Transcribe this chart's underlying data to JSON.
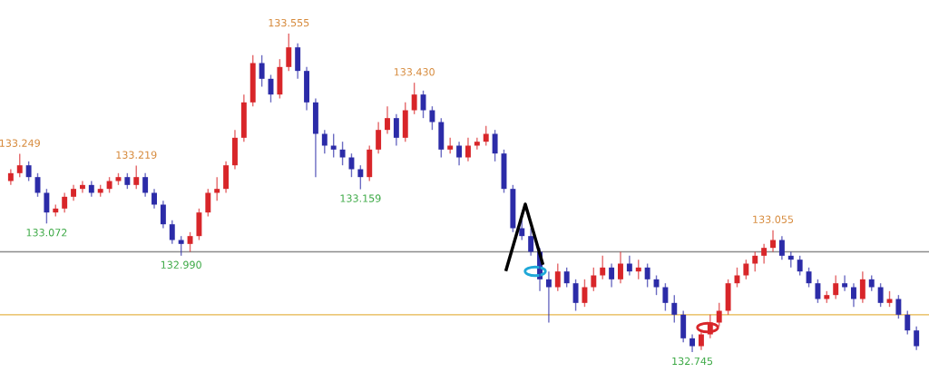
{
  "chart_data": {
    "type": "candlestick",
    "categories": [
      null,
      null,
      null,
      null,
      null,
      null,
      null,
      null,
      null,
      null,
      null,
      null,
      null,
      null,
      null,
      null,
      null,
      null,
      null,
      null,
      null,
      null,
      null,
      null,
      null,
      null,
      null,
      null,
      null,
      null,
      null,
      null,
      null,
      null,
      null,
      null,
      null,
      null,
      null,
      null,
      null,
      null,
      null,
      null,
      null,
      null,
      null,
      null,
      null,
      null,
      null,
      null,
      null,
      null,
      null,
      null,
      null,
      null,
      null,
      null,
      null,
      null,
      null,
      null,
      null,
      null,
      null,
      null,
      null,
      null,
      null,
      null,
      null,
      null,
      null,
      null,
      null,
      null,
      null,
      null,
      null,
      null,
      null,
      null,
      null,
      null,
      null,
      null,
      null,
      null,
      null,
      null,
      null,
      null,
      null,
      null,
      null,
      null,
      null,
      null,
      null,
      null
    ],
    "ohlc": [
      [
        133.18,
        133.21,
        133.17,
        133.2
      ],
      [
        133.2,
        133.249,
        133.19,
        133.22
      ],
      [
        133.22,
        133.23,
        133.18,
        133.19
      ],
      [
        133.19,
        133.2,
        133.14,
        133.15
      ],
      [
        133.15,
        133.16,
        133.072,
        133.1
      ],
      [
        133.1,
        133.12,
        133.09,
        133.11
      ],
      [
        133.11,
        133.15,
        133.1,
        133.14
      ],
      [
        133.14,
        133.17,
        133.13,
        133.16
      ],
      [
        133.16,
        133.18,
        133.15,
        133.17
      ],
      [
        133.17,
        133.18,
        133.14,
        133.15
      ],
      [
        133.15,
        133.17,
        133.14,
        133.16
      ],
      [
        133.16,
        133.19,
        133.15,
        133.18
      ],
      [
        133.18,
        133.2,
        133.17,
        133.19
      ],
      [
        133.19,
        133.2,
        133.16,
        133.17
      ],
      [
        133.17,
        133.219,
        133.16,
        133.19
      ],
      [
        133.19,
        133.2,
        133.14,
        133.15
      ],
      [
        133.15,
        133.16,
        133.11,
        133.12
      ],
      [
        133.12,
        133.13,
        133.06,
        133.07
      ],
      [
        133.07,
        133.08,
        133.02,
        133.03
      ],
      [
        133.03,
        133.04,
        132.99,
        133.02
      ],
      [
        133.02,
        133.05,
        133.0,
        133.04
      ],
      [
        133.04,
        133.11,
        133.03,
        133.1
      ],
      [
        133.1,
        133.16,
        133.09,
        133.15
      ],
      [
        133.15,
        133.19,
        133.13,
        133.16
      ],
      [
        133.16,
        133.23,
        133.15,
        133.22
      ],
      [
        133.22,
        133.31,
        133.21,
        133.29
      ],
      [
        133.29,
        133.4,
        133.28,
        133.38
      ],
      [
        133.38,
        133.5,
        133.37,
        133.48
      ],
      [
        133.48,
        133.5,
        133.42,
        133.44
      ],
      [
        133.44,
        133.45,
        133.38,
        133.4
      ],
      [
        133.4,
        133.49,
        133.39,
        133.47
      ],
      [
        133.47,
        133.555,
        133.46,
        133.52
      ],
      [
        133.52,
        133.53,
        133.44,
        133.46
      ],
      [
        133.46,
        133.47,
        133.36,
        133.38
      ],
      [
        133.38,
        133.39,
        133.19,
        133.3
      ],
      [
        133.3,
        133.31,
        133.25,
        133.27
      ],
      [
        133.27,
        133.3,
        133.24,
        133.26
      ],
      [
        133.26,
        133.28,
        133.22,
        133.24
      ],
      [
        133.24,
        133.25,
        133.19,
        133.21
      ],
      [
        133.21,
        133.22,
        133.159,
        133.19
      ],
      [
        133.19,
        133.27,
        133.18,
        133.26
      ],
      [
        133.26,
        133.33,
        133.25,
        133.31
      ],
      [
        133.31,
        133.37,
        133.3,
        133.34
      ],
      [
        133.34,
        133.35,
        133.27,
        133.29
      ],
      [
        133.29,
        133.38,
        133.28,
        133.36
      ],
      [
        133.36,
        133.43,
        133.35,
        133.4
      ],
      [
        133.4,
        133.41,
        133.34,
        133.36
      ],
      [
        133.36,
        133.37,
        133.31,
        133.33
      ],
      [
        133.33,
        133.34,
        133.24,
        133.26
      ],
      [
        133.26,
        133.29,
        133.25,
        133.27
      ],
      [
        133.27,
        133.28,
        133.22,
        133.24
      ],
      [
        133.24,
        133.29,
        133.23,
        133.27
      ],
      [
        133.27,
        133.29,
        133.26,
        133.28
      ],
      [
        133.28,
        133.32,
        133.27,
        133.3
      ],
      [
        133.3,
        133.31,
        133.23,
        133.25
      ],
      [
        133.25,
        133.26,
        133.15,
        133.16
      ],
      [
        133.16,
        133.17,
        133.05,
        133.06
      ],
      [
        133.06,
        133.08,
        133.03,
        133.04
      ],
      [
        133.04,
        133.06,
        132.99,
        133.0
      ],
      [
        133.0,
        133.01,
        132.9,
        132.93
      ],
      [
        132.93,
        132.95,
        132.82,
        132.91
      ],
      [
        132.91,
        132.97,
        132.9,
        132.95
      ],
      [
        132.95,
        132.96,
        132.91,
        132.92
      ],
      [
        132.92,
        132.93,
        132.85,
        132.87
      ],
      [
        132.87,
        132.93,
        132.86,
        132.91
      ],
      [
        132.91,
        132.96,
        132.9,
        132.94
      ],
      [
        132.94,
        132.99,
        132.93,
        132.96
      ],
      [
        132.96,
        132.97,
        132.91,
        132.93
      ],
      [
        132.93,
        133.0,
        132.92,
        132.97
      ],
      [
        132.97,
        132.99,
        132.94,
        132.95
      ],
      [
        132.95,
        132.98,
        132.93,
        132.96
      ],
      [
        132.96,
        132.97,
        132.91,
        132.93
      ],
      [
        132.93,
        132.94,
        132.89,
        132.91
      ],
      [
        132.91,
        132.92,
        132.85,
        132.87
      ],
      [
        132.87,
        132.89,
        132.82,
        132.84
      ],
      [
        132.84,
        132.85,
        132.77,
        132.78
      ],
      [
        132.78,
        132.79,
        132.745,
        132.76
      ],
      [
        132.76,
        132.8,
        132.75,
        132.79
      ],
      [
        132.79,
        132.84,
        132.78,
        132.82
      ],
      [
        132.82,
        132.87,
        132.81,
        132.85
      ],
      [
        132.85,
        132.93,
        132.84,
        132.92
      ],
      [
        132.92,
        132.96,
        132.91,
        132.94
      ],
      [
        132.94,
        132.98,
        132.93,
        132.97
      ],
      [
        132.97,
        133.0,
        132.95,
        132.99
      ],
      [
        132.99,
        133.02,
        132.97,
        133.01
      ],
      [
        133.01,
        133.055,
        133.0,
        133.03
      ],
      [
        133.03,
        133.04,
        132.98,
        132.99
      ],
      [
        132.99,
        133.0,
        132.96,
        132.98
      ],
      [
        132.98,
        132.99,
        132.94,
        132.95
      ],
      [
        132.95,
        132.96,
        132.91,
        132.92
      ],
      [
        132.92,
        132.93,
        132.87,
        132.88
      ],
      [
        132.88,
        132.9,
        132.87,
        132.89
      ],
      [
        132.89,
        132.94,
        132.88,
        132.92
      ],
      [
        132.92,
        132.94,
        132.9,
        132.91
      ],
      [
        132.91,
        132.92,
        132.86,
        132.88
      ],
      [
        132.88,
        132.95,
        132.87,
        132.93
      ],
      [
        132.93,
        132.94,
        132.9,
        132.91
      ],
      [
        132.91,
        132.92,
        132.86,
        132.87
      ],
      [
        132.87,
        132.9,
        132.86,
        132.88
      ],
      [
        132.88,
        132.89,
        132.83,
        132.84
      ],
      [
        132.84,
        132.85,
        132.79,
        132.8
      ],
      [
        132.8,
        132.81,
        132.75,
        132.76
      ]
    ],
    "colors": [
      "#d8262a",
      "#d8262a",
      "#2c2ca8",
      "#2c2ca8",
      "#2c2ca8",
      "#d8262a",
      "#d8262a",
      "#d8262a",
      "#d8262a",
      "#2c2ca8",
      "#d8262a",
      "#d8262a",
      "#d8262a",
      "#2c2ca8",
      "#d8262a",
      "#2c2ca8",
      "#2c2ca8",
      "#2c2ca8",
      "#2c2ca8",
      "#2c2ca8",
      "#d8262a",
      "#d8262a",
      "#d8262a",
      "#d8262a",
      "#d8262a",
      "#d8262a",
      "#d8262a",
      "#d8262a",
      "#2c2ca8",
      "#2c2ca8",
      "#d8262a",
      "#d8262a",
      "#2c2ca8",
      "#2c2ca8",
      "#2c2ca8",
      "#2c2ca8",
      "#2c2ca8",
      "#2c2ca8",
      "#2c2ca8",
      "#2c2ca8",
      "#d8262a",
      "#d8262a",
      "#d8262a",
      "#2c2ca8",
      "#d8262a",
      "#d8262a",
      "#2c2ca8",
      "#2c2ca8",
      "#2c2ca8",
      "#d8262a",
      "#2c2ca8",
      "#d8262a",
      "#d8262a",
      "#d8262a",
      "#2c2ca8",
      "#2c2ca8",
      "#2c2ca8",
      "#2c2ca8",
      "#2c2ca8",
      "#2c2ca8",
      "#2c2ca8",
      "#d8262a",
      "#2c2ca8",
      "#2c2ca8",
      "#d8262a",
      "#d8262a",
      "#d8262a",
      "#2c2ca8",
      "#d8262a",
      "#2c2ca8",
      "#d8262a",
      "#2c2ca8",
      "#2c2ca8",
      "#2c2ca8",
      "#2c2ca8",
      "#2c2ca8",
      "#2c2ca8",
      "#d8262a",
      "#d8262a",
      "#d8262a",
      "#d8262a",
      "#d8262a",
      "#d8262a",
      "#d8262a",
      "#d8262a",
      "#d8262a",
      "#2c2ca8",
      "#2c2ca8",
      "#2c2ca8",
      "#2c2ca8",
      "#2c2ca8",
      "#d8262a",
      "#d8262a",
      "#2c2ca8",
      "#2c2ca8",
      "#d8262a",
      "#2c2ca8",
      "#2c2ca8",
      "#d8262a",
      "#2c2ca8",
      "#2c2ca8",
      "#2c2ca8"
    ],
    "annotations": [
      {
        "text": "133.249",
        "y": 133.249
      },
      {
        "text": "133.072",
        "y": 133.072
      },
      {
        "text": "133.219",
        "y": 133.219
      },
      {
        "text": "132.990",
        "y": 132.99
      },
      {
        "text": "133.555",
        "y": 133.555
      },
      {
        "text": "133.159",
        "y": 133.159
      },
      {
        "text": "133.430",
        "y": 133.43
      },
      {
        "text": "132.745",
        "y": 132.745
      },
      {
        "text": "133.055",
        "y": 133.055
      }
    ],
    "ref_lines": [
      {
        "axis": "y",
        "value": 133.0,
        "color": "#8c8c8c"
      },
      {
        "axis": "y",
        "value": 132.84,
        "color": "#e6b54a"
      }
    ]
  }
}
